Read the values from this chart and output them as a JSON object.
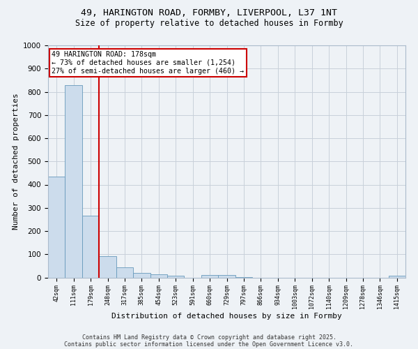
{
  "title_line1": "49, HARINGTON ROAD, FORMBY, LIVERPOOL, L37 1NT",
  "title_line2": "Size of property relative to detached houses in Formby",
  "xlabel": "Distribution of detached houses by size in Formby",
  "ylabel": "Number of detached properties",
  "categories": [
    "42sqm",
    "111sqm",
    "179sqm",
    "248sqm",
    "317sqm",
    "385sqm",
    "454sqm",
    "523sqm",
    "591sqm",
    "660sqm",
    "729sqm",
    "797sqm",
    "866sqm",
    "934sqm",
    "1003sqm",
    "1072sqm",
    "1140sqm",
    "1209sqm",
    "1278sqm",
    "1346sqm",
    "1415sqm"
  ],
  "values": [
    435,
    830,
    265,
    93,
    44,
    20,
    13,
    8,
    0,
    10,
    10,
    3,
    0,
    0,
    0,
    0,
    0,
    0,
    0,
    0,
    8
  ],
  "bar_color": "#ccdcec",
  "bar_edge_color": "#6699bb",
  "redline_index": 2,
  "annotation_text": "49 HARINGTON ROAD: 178sqm\n← 73% of detached houses are smaller (1,254)\n27% of semi-detached houses are larger (460) →",
  "annotation_box_color": "#ffffff",
  "annotation_box_edge": "#cc0000",
  "ylim": [
    0,
    1000
  ],
  "yticks": [
    0,
    100,
    200,
    300,
    400,
    500,
    600,
    700,
    800,
    900,
    1000
  ],
  "footer_line1": "Contains HM Land Registry data © Crown copyright and database right 2025.",
  "footer_line2": "Contains public sector information licensed under the Open Government Licence v3.0.",
  "background_color": "#eef2f6",
  "plot_background": "#eef2f6",
  "grid_color": "#c8d0da"
}
